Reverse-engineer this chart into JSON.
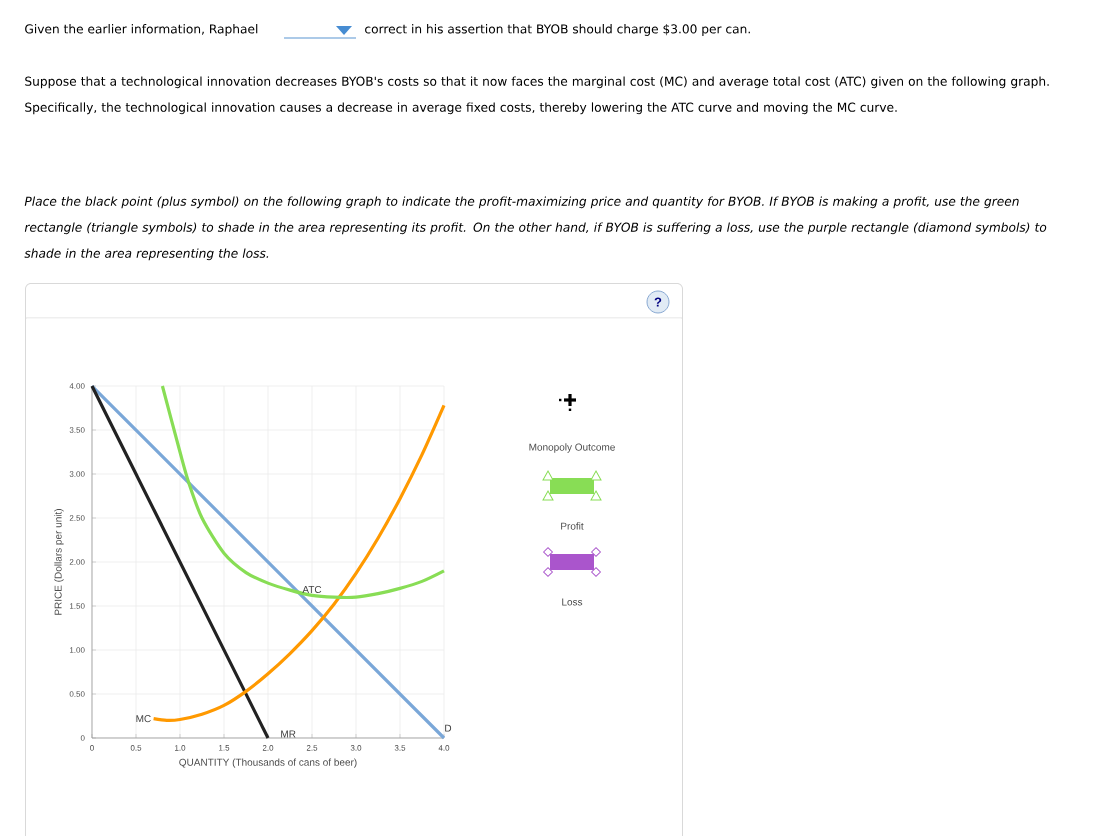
{
  "chart_data": {
    "type": "line",
    "xlabel": "QUANTITY (Thousands of cans of beer)",
    "ylabel": "PRICE (Dollars per unit)",
    "xlim": [
      0,
      4
    ],
    "ylim": [
      0,
      4
    ],
    "xticks": [
      0,
      0.5,
      {
        "value": 1,
        "label": "1.0"
      },
      1.5,
      {
        "value": 2,
        "label": "2.0"
      },
      2.5,
      {
        "value": 3,
        "label": "3.0"
      },
      3.5,
      {
        "value": 4,
        "label": "4.0"
      }
    ],
    "yticks": [
      0,
      {
        "value": 0.5,
        "label": "0.50"
      },
      {
        "value": 1,
        "label": "1.00"
      },
      {
        "value": 1.5,
        "label": "1.50"
      },
      {
        "value": 2,
        "label": "2.00"
      },
      {
        "value": 2.5,
        "label": "2.50"
      },
      {
        "value": 3,
        "label": "3.00"
      },
      {
        "value": 3.5,
        "label": "3.50"
      },
      {
        "value": 4,
        "label": "4.00"
      }
    ],
    "grid": true,
    "series": [
      {
        "name": "D",
        "color": "#7aa7d8",
        "x": [
          0,
          4
        ],
        "values": [
          4,
          0
        ]
      },
      {
        "name": "MR",
        "color": "#222222",
        "x": [
          0,
          2
        ],
        "values": [
          4,
          0
        ]
      },
      {
        "name": "MC",
        "color": "#ff9900",
        "x": [
          0.7,
          0.85,
          1.0,
          1.25,
          1.5,
          1.75,
          2.0,
          2.25,
          2.5,
          2.75,
          3.0,
          3.25,
          3.5,
          3.75,
          4.0
        ],
        "values": [
          0.22,
          0.2,
          0.21,
          0.27,
          0.37,
          0.53,
          0.73,
          0.96,
          1.22,
          1.52,
          1.87,
          2.27,
          2.72,
          3.22,
          3.78
        ]
      },
      {
        "name": "ATC",
        "color": "#88dd55",
        "x": [
          0.8,
          1.0,
          1.1,
          1.25,
          1.5,
          1.75,
          2.0,
          2.25,
          2.5,
          2.75,
          3.0,
          3.25,
          3.5,
          3.75,
          4.0
        ],
        "values": [
          4.0,
          3.25,
          2.9,
          2.5,
          2.1,
          1.88,
          1.76,
          1.68,
          1.62,
          1.6,
          1.6,
          1.64,
          1.7,
          1.78,
          1.9
        ]
      }
    ],
    "annotations": [
      "Given the earlier information, Raphael",
      "correct in his assertion that BYOB should charge $3.00 per can.",
      "Suppose that a technological innovation decreases BYOB's costs so that it now faces the marginal cost (MC) and average total cost (ATC) given on the following graph. Specifically, the technological innovation causes a decrease in average fixed costs, thereby lowering the ATC curve and moving the MC curve.",
      "Place the black point (plus symbol) on the following graph to indicate the profit-maximizing price and quantity for BYOB. If BYOB is making a profit, use the green rectangle (triangle symbols) to shade in the area representing its profit. On the other hand, if BYOB is suffering a loss, use the purple rectangle (diamond symbols) to shade in the area representing the loss.",
      "Monopoly Outcome",
      "Profit",
      "Loss",
      "?"
    ]
  }
}
